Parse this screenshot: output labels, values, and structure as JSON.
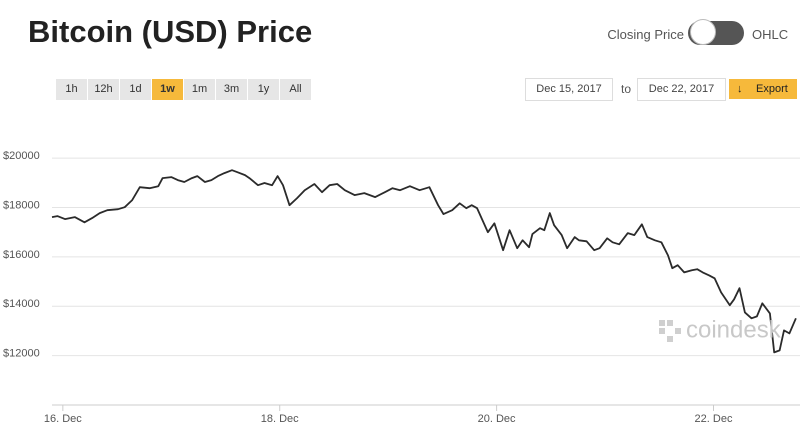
{
  "ui": {
    "title": "Bitcoin (USD) Price",
    "toggle_left": "Closing Price",
    "toggle_right": "OHLC",
    "ranges": [
      {
        "label": "1h"
      },
      {
        "label": "12h"
      },
      {
        "label": "1d"
      },
      {
        "label": "1w",
        "selected": true
      },
      {
        "label": "1m"
      },
      {
        "label": "3m"
      },
      {
        "label": "1y"
      },
      {
        "label": "All"
      }
    ],
    "date_from": "Dec 15, 2017",
    "date_sep": "to",
    "date_to": "Dec 22, 2017",
    "export": "Export",
    "watermark": "coindesk"
  },
  "chart_data": {
    "type": "line",
    "color": "#2b2b2b",
    "grid": true,
    "xlim": [
      15.9,
      22.77
    ],
    "xticks": [
      {
        "value": 16,
        "label": "16. Dec"
      },
      {
        "value": 18,
        "label": "18. Dec"
      },
      {
        "value": 20,
        "label": "20. Dec"
      },
      {
        "value": 22,
        "label": "22. Dec"
      }
    ],
    "ylim": [
      10000,
      22000
    ],
    "yticks": [
      {
        "value": 12000,
        "label": "$12000"
      },
      {
        "value": 14000,
        "label": "$14000"
      },
      {
        "value": 16000,
        "label": "$16000"
      },
      {
        "value": 18000,
        "label": "$18000"
      },
      {
        "value": 20000,
        "label": "$20000"
      }
    ],
    "x": [
      15.9,
      15.95,
      16.02,
      16.11,
      16.2,
      16.27,
      16.34,
      16.41,
      16.51,
      16.57,
      16.64,
      16.71,
      16.8,
      16.88,
      16.92,
      17.0,
      17.06,
      17.12,
      17.19,
      17.24,
      17.31,
      17.37,
      17.43,
      17.49,
      17.56,
      17.61,
      17.68,
      17.72,
      17.8,
      17.86,
      17.93,
      17.98,
      18.03,
      18.09,
      18.16,
      18.23,
      18.32,
      18.39,
      18.46,
      18.53,
      18.6,
      18.69,
      18.78,
      18.88,
      18.97,
      19.04,
      19.11,
      19.2,
      19.29,
      19.38,
      19.46,
      19.51,
      19.59,
      19.66,
      19.72,
      19.77,
      19.82,
      19.92,
      19.98,
      20.06,
      20.12,
      20.19,
      20.24,
      20.3,
      20.33,
      20.4,
      20.44,
      20.49,
      20.53,
      20.6,
      20.65,
      20.72,
      20.76,
      20.83,
      20.9,
      20.95,
      21.02,
      21.07,
      21.13,
      21.21,
      21.27,
      21.34,
      21.39,
      21.46,
      21.52,
      21.58,
      21.62,
      21.67,
      21.73,
      21.8,
      21.85,
      21.9,
      21.96,
      22.01,
      22.07,
      22.15,
      22.19,
      22.24,
      22.29,
      22.35,
      22.4,
      22.45,
      22.52,
      22.56,
      22.61,
      22.65,
      22.7,
      22.76
    ],
    "values": [
      17610,
      17650,
      17530,
      17610,
      17400,
      17570,
      17770,
      17890,
      17930,
      18010,
      18300,
      18820,
      18780,
      18860,
      19190,
      19230,
      19110,
      19030,
      19190,
      19270,
      19030,
      19110,
      19270,
      19390,
      19510,
      19430,
      19310,
      19190,
      18900,
      18990,
      18900,
      19270,
      18900,
      18090,
      18380,
      18700,
      18950,
      18620,
      18900,
      18950,
      18700,
      18500,
      18580,
      18420,
      18620,
      18780,
      18700,
      18860,
      18700,
      18820,
      18090,
      17730,
      17890,
      18170,
      17970,
      18090,
      17970,
      17000,
      17360,
      16270,
      17080,
      16350,
      16670,
      16390,
      16920,
      17160,
      17080,
      17770,
      17280,
      16880,
      16350,
      16800,
      16670,
      16630,
      16270,
      16350,
      16750,
      16590,
      16510,
      16960,
      16880,
      17320,
      16800,
      16670,
      16590,
      16060,
      15540,
      15660,
      15370,
      15460,
      15500,
      15370,
      15250,
      15130,
      14560,
      14040,
      14280,
      14730,
      13750,
      13510,
      13590,
      14120,
      13710,
      12130,
      12210,
      13020,
      12900,
      13510
    ]
  }
}
